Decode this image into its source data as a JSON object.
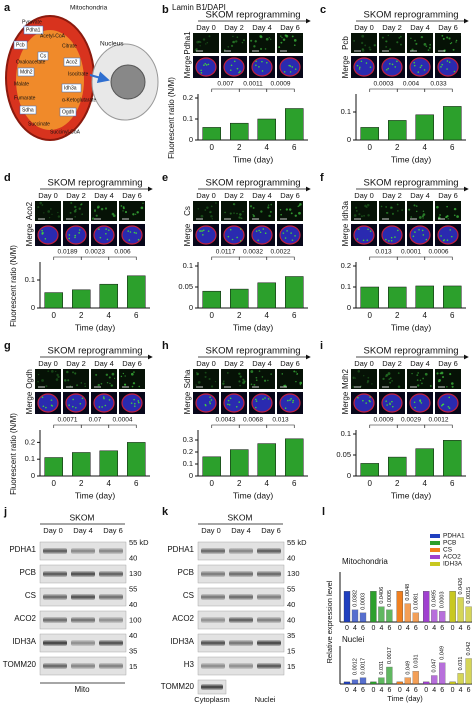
{
  "panel_a": {
    "letter": "a",
    "mitochondria": "Mitochondria",
    "nucleus": "Nucleus",
    "labels": [
      "Pyruvate",
      "Pdha1",
      "Acetyl-CoA",
      "Pcb",
      "Citrate",
      "Cs",
      "Oxaloacetate",
      "Aco2",
      "Mdh2",
      "Isocitrate",
      "Malate",
      "Idh3a",
      "Fumarate",
      "α-Ketoglutarate",
      "Sdha",
      "Ogdh",
      "Succinate",
      "Succinyl-CoA"
    ]
  },
  "stain_legend": {
    "lamin": "Lamin B1",
    "dapi": "/DAPI"
  },
  "bar_panels": [
    {
      "letter": "b",
      "title": "SKOM reprogramming",
      "days": [
        "Day 0",
        "Day 2",
        "Day 4",
        "Day 6"
      ],
      "stain": "Pdha1",
      "merge": "Merge",
      "ylabel": "Fluorescent ratio (N/M)",
      "xlabel": "Time (day)",
      "categories": [
        "0",
        "2",
        "4",
        "6"
      ],
      "values": [
        0.06,
        0.08,
        0.1,
        0.15
      ],
      "ylim": [
        0,
        0.2
      ],
      "yticks": [
        0,
        0.1,
        0.2
      ],
      "pvalues": [
        "0.007",
        "0.0011",
        "0.0009"
      ]
    },
    {
      "letter": "c",
      "title": "SKOM reprogramming",
      "days": [
        "Day 0",
        "Day 2",
        "Day 4",
        "Day 6"
      ],
      "stain": "Pcb",
      "merge": "Merge",
      "xlabel": "Time (day)",
      "categories": [
        "0",
        "2",
        "4",
        "6"
      ],
      "values": [
        0.045,
        0.07,
        0.09,
        0.12
      ],
      "ylim": [
        0,
        0.15
      ],
      "yticks": [
        0,
        0.1
      ],
      "pvalues": [
        "0.0003",
        "0.004",
        "0.033"
      ]
    },
    {
      "letter": "d",
      "title": "SKOM reprogramming",
      "days": [
        "Day 0",
        "Day 2",
        "Day 4",
        "Day 6"
      ],
      "stain": "Aco2",
      "merge": "Merge",
      "ylabel": "Fluorescent ratio (N/M)",
      "xlabel": "Time (day)",
      "categories": [
        "0",
        "2",
        "4",
        "6"
      ],
      "values": [
        0.055,
        0.065,
        0.085,
        0.115
      ],
      "ylim": [
        0,
        0.15
      ],
      "yticks": [
        0,
        0.1
      ],
      "pvalues": [
        "0.0189",
        "0.0023",
        "0.006"
      ]
    },
    {
      "letter": "e",
      "title": "SKOM reprogramming",
      "days": [
        "Day 0",
        "Day 2",
        "Day 4",
        "Day 6"
      ],
      "stain": "Cs",
      "merge": "Merge",
      "xlabel": "Time (day)",
      "categories": [
        "0",
        "2",
        "4",
        "6"
      ],
      "values": [
        0.04,
        0.045,
        0.06,
        0.075
      ],
      "ylim": [
        0,
        0.1
      ],
      "yticks": [
        0,
        0.05,
        0.1
      ],
      "pvalues": [
        "0.0117",
        "0.0032",
        "0.0022"
      ]
    },
    {
      "letter": "f",
      "title": "SKOM reprogramming",
      "days": [
        "Day 0",
        "Day 2",
        "Day 4",
        "Day 6"
      ],
      "stain": "Idh3a",
      "merge": "Merge",
      "xlabel": "Time (day)",
      "categories": [
        "0",
        "2",
        "4",
        "6"
      ],
      "values": [
        0.1,
        0.1,
        0.105,
        0.105
      ],
      "ylim": [
        0,
        0.2
      ],
      "yticks": [
        0,
        0.1,
        0.2
      ],
      "pvalues": [
        "0.013",
        "0.0001",
        "0.0006"
      ]
    },
    {
      "letter": "g",
      "title": "SKOM reprogramming",
      "days": [
        "Day 0",
        "Day 2",
        "Day 4",
        "Day 6"
      ],
      "stain": "Ogdh",
      "merge": "Merge",
      "ylabel": "Fluorescent ratio (N/M)",
      "xlabel": "Time (day)",
      "categories": [
        "0",
        "2",
        "4",
        "6"
      ],
      "values": [
        0.11,
        0.14,
        0.15,
        0.2
      ],
      "ylim": [
        0,
        0.25
      ],
      "yticks": [
        0,
        0.1,
        0.2
      ],
      "pvalues": [
        "0.0071",
        "0.07",
        "0.0004"
      ]
    },
    {
      "letter": "h",
      "title": "SKOM reprogramming",
      "days": [
        "Day 0",
        "Day 2",
        "Day 4",
        "Day 6"
      ],
      "stain": "Sdha",
      "merge": "Merge",
      "xlabel": "Time (day)",
      "categories": [
        "0",
        "2",
        "4",
        "6"
      ],
      "values": [
        0.16,
        0.22,
        0.27,
        0.31
      ],
      "ylim": [
        0,
        0.35
      ],
      "yticks": [
        0,
        0.1,
        0.2,
        0.3
      ],
      "pvalues": [
        "0.0043",
        "0.0068",
        "0.013"
      ]
    },
    {
      "letter": "i",
      "title": "SKOM reprogramming",
      "days": [
        "Day 0",
        "Day 2",
        "Day 4",
        "Day 6"
      ],
      "stain": "Mdh2",
      "merge": "Merge",
      "xlabel": "Time (day)",
      "categories": [
        "0",
        "2",
        "4",
        "6"
      ],
      "values": [
        0.03,
        0.045,
        0.065,
        0.085
      ],
      "ylim": [
        0,
        0.1
      ],
      "yticks": [
        0,
        0.05,
        0.1
      ],
      "pvalues": [
        "0.0009",
        "0.0029",
        "0.0012"
      ]
    }
  ],
  "panel_j": {
    "letter": "j",
    "group": "SKOM",
    "days": [
      "Day 0",
      "Day 4",
      "Day 6"
    ],
    "rows": [
      "PDHA1",
      "PCB",
      "CS",
      "ACO2",
      "IDH3A",
      "TOMM20"
    ],
    "markers": [
      "55 kD",
      "40",
      "130",
      "55",
      "40",
      "100",
      "40",
      "35",
      "15"
    ],
    "footer": "Mito"
  },
  "panel_k": {
    "letter": "k",
    "group": "SKOM",
    "days": [
      "Day 0",
      "Day 4",
      "Day 6"
    ],
    "rows": [
      "PDHA1",
      "PCB",
      "CS",
      "ACO2",
      "IDH3A",
      "H3"
    ],
    "cyto_row": "TOMM20",
    "markers": [
      "55 kD",
      "40",
      "130",
      "55",
      "40",
      "40",
      "35",
      "15",
      "15"
    ],
    "cytoplasm": "Cytoplasm",
    "nuclei": "Nuclei"
  },
  "panel_l": {
    "letter": "l",
    "ylabel": "Relative expression level",
    "xlabel": "Time (day)",
    "charts": [
      {
        "title": "Mitochondria",
        "categories": [
          "0",
          "4",
          "6"
        ],
        "ylim": [
          0,
          1.5
        ],
        "series": [
          {
            "name": "PDHA1",
            "color": "#1f3fbf",
            "values": [
              1,
              0.4,
              0.3
            ],
            "pvalues": [
              "0.0382",
              "0.0003"
            ]
          },
          {
            "name": "PCB",
            "color": "#2ca02c",
            "values": [
              1,
              0.5,
              0.4
            ],
            "pvalues": [
              "0.0406",
              "0.0005"
            ]
          },
          {
            "name": "CS",
            "color": "#f08020",
            "values": [
              1,
              0.6,
              0.3
            ],
            "pvalues": [
              "0.0048",
              "0.0081"
            ]
          },
          {
            "name": "ACO2",
            "color": "#a040d0",
            "values": [
              1,
              0.4,
              0.35
            ],
            "pvalues": [
              "0.0495",
              "0.0003"
            ]
          },
          {
            "name": "IDH3A",
            "color": "#c8c820",
            "values": [
              1,
              0.8,
              0.5
            ],
            "pvalues": [
              "0.0426",
              "0.0015"
            ]
          }
        ]
      },
      {
        "title": "Nuclei",
        "categories": [
          "0",
          "4",
          "6"
        ],
        "ylim": [
          0,
          16
        ],
        "series": [
          {
            "name": "PDHA1",
            "color": "#1f3fbf",
            "values": [
              1,
              2,
              3
            ],
            "pvalues": [
              "0.0012",
              "0.0017"
            ]
          },
          {
            "name": "PCB",
            "color": "#2ca02c",
            "values": [
              1,
              3,
              8
            ],
            "pvalues": [
              "0.031",
              "0.0017"
            ]
          },
          {
            "name": "CS",
            "color": "#f08020",
            "values": [
              1,
              3,
              6
            ],
            "pvalues": [
              "0.049",
              "0.031"
            ]
          },
          {
            "name": "ACO2",
            "color": "#a040d0",
            "values": [
              1,
              4,
              10
            ],
            "pvalues": [
              "0.047",
              "0.049"
            ]
          },
          {
            "name": "IDH3A",
            "color": "#c8c820",
            "values": [
              1,
              5,
              12
            ],
            "pvalues": [
              "0.031",
              "0.042"
            ]
          }
        ]
      }
    ]
  }
}
